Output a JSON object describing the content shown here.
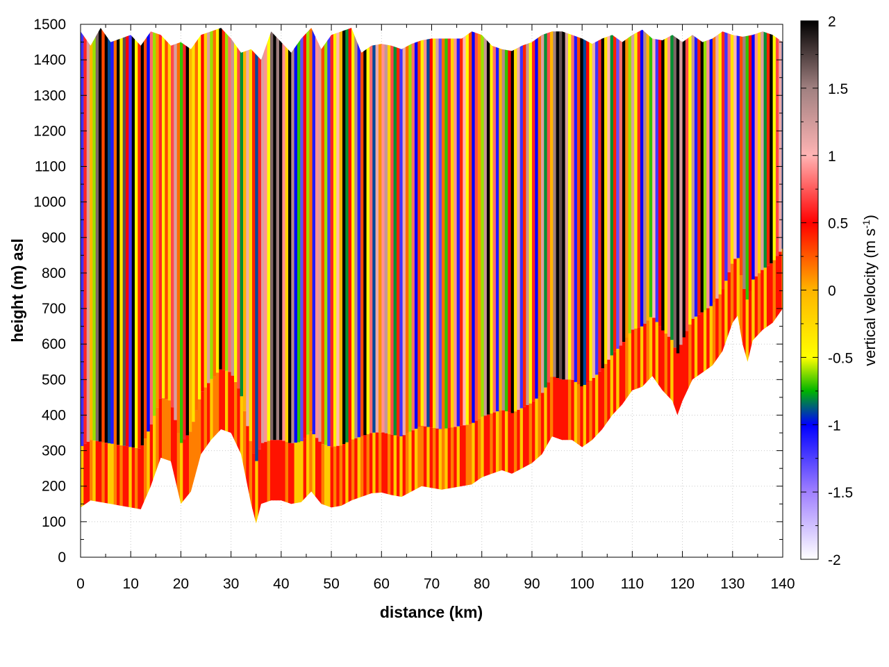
{
  "chart_data": {
    "type": "heatmap",
    "title": "",
    "xlabel": "distance (km)",
    "ylabel": "height (m) asl",
    "xlim": [
      0,
      140
    ],
    "ylim": [
      0,
      1500
    ],
    "x_ticks": [
      "0",
      "10",
      "20",
      "30",
      "40",
      "50",
      "60",
      "70",
      "80",
      "90",
      "100",
      "110",
      "120",
      "130",
      "140"
    ],
    "y_ticks": [
      "0",
      "100",
      "200",
      "300",
      "400",
      "500",
      "600",
      "700",
      "800",
      "900",
      "1000",
      "1100",
      "1200",
      "1300",
      "1400",
      "1500"
    ],
    "grid": true,
    "colorbar": {
      "label_main": "vertical velocity (m s",
      "label_sup": "-1",
      "label_end": ")",
      "range": [
        -2,
        2
      ],
      "ticks": [
        "2",
        "1.5",
        "1",
        "0.5",
        "0",
        "-0.5",
        "-1",
        "-1.5",
        "-2"
      ],
      "colors": [
        "#ffffff",
        "#a080ff",
        "#0000ff",
        "#00b400",
        "#ffff00",
        "#ffb400",
        "#ff0000",
        "#ffb4b4",
        "#a08080",
        "#000000"
      ],
      "color_stops": [
        -2.0,
        -1.5,
        -1.0,
        -0.75,
        -0.5,
        0.0,
        0.5,
        1.0,
        1.5,
        2.0
      ]
    },
    "terrain_height_m": [
      [
        0,
        140
      ],
      [
        2,
        160
      ],
      [
        4,
        155
      ],
      [
        6,
        150
      ],
      [
        8,
        145
      ],
      [
        10,
        140
      ],
      [
        12,
        135
      ],
      [
        14,
        200
      ],
      [
        16,
        280
      ],
      [
        18,
        270
      ],
      [
        20,
        150
      ],
      [
        22,
        185
      ],
      [
        24,
        290
      ],
      [
        26,
        330
      ],
      [
        28,
        360
      ],
      [
        30,
        350
      ],
      [
        32,
        290
      ],
      [
        34,
        150
      ],
      [
        35,
        95
      ],
      [
        36,
        150
      ],
      [
        38,
        160
      ],
      [
        40,
        160
      ],
      [
        42,
        150
      ],
      [
        44,
        155
      ],
      [
        46,
        185
      ],
      [
        48,
        150
      ],
      [
        50,
        140
      ],
      [
        52,
        145
      ],
      [
        54,
        160
      ],
      [
        56,
        170
      ],
      [
        58,
        180
      ],
      [
        60,
        182
      ],
      [
        62,
        175
      ],
      [
        64,
        170
      ],
      [
        66,
        185
      ],
      [
        68,
        200
      ],
      [
        70,
        195
      ],
      [
        72,
        190
      ],
      [
        74,
        195
      ],
      [
        76,
        200
      ],
      [
        78,
        205
      ],
      [
        80,
        225
      ],
      [
        82,
        235
      ],
      [
        84,
        245
      ],
      [
        86,
        235
      ],
      [
        88,
        250
      ],
      [
        90,
        265
      ],
      [
        92,
        290
      ],
      [
        94,
        340
      ],
      [
        96,
        330
      ],
      [
        98,
        330
      ],
      [
        100,
        310
      ],
      [
        102,
        330
      ],
      [
        104,
        360
      ],
      [
        106,
        400
      ],
      [
        108,
        430
      ],
      [
        110,
        470
      ],
      [
        112,
        480
      ],
      [
        114,
        510
      ],
      [
        116,
        470
      ],
      [
        118,
        440
      ],
      [
        119,
        400
      ],
      [
        120,
        440
      ],
      [
        122,
        500
      ],
      [
        124,
        520
      ],
      [
        126,
        540
      ],
      [
        128,
        580
      ],
      [
        130,
        660
      ],
      [
        131,
        680
      ],
      [
        132,
        600
      ],
      [
        133,
        550
      ],
      [
        134,
        610
      ],
      [
        136,
        640
      ],
      [
        138,
        660
      ],
      [
        140,
        700
      ]
    ],
    "top_height_m": [
      [
        0,
        1480
      ],
      [
        2,
        1440
      ],
      [
        4,
        1490
      ],
      [
        6,
        1450
      ],
      [
        8,
        1460
      ],
      [
        10,
        1470
      ],
      [
        12,
        1440
      ],
      [
        14,
        1480
      ],
      [
        16,
        1470
      ],
      [
        18,
        1440
      ],
      [
        20,
        1450
      ],
      [
        22,
        1430
      ],
      [
        24,
        1470
      ],
      [
        26,
        1480
      ],
      [
        28,
        1490
      ],
      [
        30,
        1460
      ],
      [
        32,
        1420
      ],
      [
        34,
        1430
      ],
      [
        36,
        1400
      ],
      [
        38,
        1480
      ],
      [
        40,
        1450
      ],
      [
        42,
        1420
      ],
      [
        44,
        1460
      ],
      [
        46,
        1490
      ],
      [
        48,
        1430
      ],
      [
        50,
        1470
      ],
      [
        52,
        1480
      ],
      [
        54,
        1490
      ],
      [
        56,
        1420
      ],
      [
        58,
        1440
      ],
      [
        60,
        1445
      ],
      [
        62,
        1440
      ],
      [
        64,
        1430
      ],
      [
        66,
        1445
      ],
      [
        68,
        1455
      ],
      [
        70,
        1460
      ],
      [
        72,
        1460
      ],
      [
        74,
        1460
      ],
      [
        76,
        1460
      ],
      [
        78,
        1480
      ],
      [
        80,
        1470
      ],
      [
        82,
        1440
      ],
      [
        84,
        1430
      ],
      [
        86,
        1425
      ],
      [
        88,
        1440
      ],
      [
        90,
        1450
      ],
      [
        92,
        1470
      ],
      [
        94,
        1480
      ],
      [
        96,
        1480
      ],
      [
        98,
        1470
      ],
      [
        100,
        1460
      ],
      [
        102,
        1445
      ],
      [
        104,
        1460
      ],
      [
        106,
        1470
      ],
      [
        108,
        1450
      ],
      [
        110,
        1470
      ],
      [
        112,
        1485
      ],
      [
        114,
        1460
      ],
      [
        116,
        1455
      ],
      [
        118,
        1470
      ],
      [
        120,
        1450
      ],
      [
        122,
        1470
      ],
      [
        124,
        1450
      ],
      [
        126,
        1460
      ],
      [
        128,
        1480
      ],
      [
        130,
        1470
      ],
      [
        132,
        1465
      ],
      [
        134,
        1470
      ],
      [
        136,
        1480
      ],
      [
        138,
        1470
      ],
      [
        140,
        1450
      ]
    ],
    "column_vertical_velocity_ms": [
      [
        0.0,
        -1.2
      ],
      [
        0.6,
        0.6
      ],
      [
        1.2,
        1.2
      ],
      [
        1.8,
        0.0
      ],
      [
        2.4,
        -0.6
      ],
      [
        3.0,
        1.6
      ],
      [
        3.6,
        2.0
      ],
      [
        4.2,
        0.3
      ],
      [
        4.8,
        2.0
      ],
      [
        5.4,
        -0.9
      ],
      [
        6.0,
        -1.1
      ],
      [
        6.6,
        0.2
      ],
      [
        7.2,
        2.0
      ],
      [
        7.8,
        -0.4
      ],
      [
        8.4,
        1.7
      ],
      [
        9.0,
        0.5
      ],
      [
        9.6,
        -1.2
      ],
      [
        10.2,
        2.0
      ],
      [
        10.8,
        -0.5
      ],
      [
        11.4,
        0.4
      ],
      [
        12.0,
        2.0
      ],
      [
        12.6,
        0.3
      ],
      [
        13.2,
        -1.0
      ],
      [
        13.8,
        0.8
      ],
      [
        14.4,
        -0.6
      ],
      [
        15.0,
        0.1
      ],
      [
        15.6,
        0.6
      ],
      [
        16.2,
        -0.4
      ],
      [
        16.8,
        0.3
      ],
      [
        17.4,
        -0.2
      ],
      [
        18.0,
        0.7
      ],
      [
        18.6,
        1.2
      ],
      [
        19.2,
        0.2
      ],
      [
        19.8,
        -0.7
      ],
      [
        20.4,
        0.6
      ],
      [
        21.0,
        2.0
      ],
      [
        21.6,
        0.0
      ],
      [
        22.2,
        -0.3
      ],
      [
        22.8,
        0.2
      ],
      [
        23.4,
        -0.5
      ],
      [
        24.0,
        0.5
      ],
      [
        24.6,
        -0.2
      ],
      [
        25.2,
        1.2
      ],
      [
        25.8,
        -0.6
      ],
      [
        26.4,
        0.2
      ],
      [
        27.0,
        -0.4
      ],
      [
        27.6,
        2.0
      ],
      [
        28.2,
        0.4
      ],
      [
        28.8,
        -0.6
      ],
      [
        29.4,
        0.8
      ],
      [
        30.0,
        1.3
      ],
      [
        30.6,
        -0.5
      ],
      [
        31.2,
        0.7
      ],
      [
        31.8,
        -0.8
      ],
      [
        32.4,
        0.0
      ],
      [
        33.0,
        1.1
      ],
      [
        33.6,
        -0.3
      ],
      [
        34.2,
        0.4
      ],
      [
        34.8,
        -0.9
      ],
      [
        35.4,
        0.6
      ],
      [
        36.0,
        1.2
      ],
      [
        36.6,
        0.9
      ],
      [
        37.2,
        -0.5
      ],
      [
        37.8,
        1.6
      ],
      [
        38.4,
        2.0
      ],
      [
        39.0,
        1.5
      ],
      [
        39.6,
        2.0
      ],
      [
        40.2,
        0.9
      ],
      [
        40.8,
        -0.2
      ],
      [
        41.4,
        2.0
      ],
      [
        42.0,
        1.4
      ],
      [
        42.6,
        -1.0
      ],
      [
        43.2,
        -0.7
      ],
      [
        43.8,
        -1.3
      ],
      [
        44.4,
        0.5
      ],
      [
        45.0,
        -0.6
      ],
      [
        45.6,
        0.2
      ],
      [
        46.2,
        -1.1
      ],
      [
        46.8,
        0.9
      ],
      [
        47.4,
        1.2
      ],
      [
        48.0,
        0.3
      ],
      [
        48.6,
        -0.6
      ],
      [
        49.2,
        -1.2
      ],
      [
        49.8,
        0.6
      ],
      [
        50.4,
        -0.4
      ],
      [
        51.0,
        1.0
      ],
      [
        51.6,
        0.0
      ],
      [
        52.2,
        2.0
      ],
      [
        52.8,
        -0.8
      ],
      [
        53.4,
        0.5
      ],
      [
        54.0,
        -0.4
      ],
      [
        54.6,
        1.4
      ],
      [
        55.2,
        -1.1
      ],
      [
        55.8,
        0.3
      ],
      [
        56.4,
        2.0
      ],
      [
        57.0,
        -0.5
      ],
      [
        57.6,
        0.8
      ],
      [
        58.2,
        -0.9
      ],
      [
        58.8,
        1.1
      ],
      [
        59.4,
        0.1
      ],
      [
        60.0,
        0.9
      ],
      [
        60.6,
        1.3
      ],
      [
        61.2,
        -0.2
      ],
      [
        61.8,
        0.7
      ],
      [
        62.4,
        -0.8
      ],
      [
        63.0,
        0.4
      ],
      [
        63.6,
        -1.2
      ],
      [
        64.2,
        1.1
      ],
      [
        64.8,
        0.2
      ],
      [
        65.4,
        -0.6
      ],
      [
        66.0,
        0.8
      ],
      [
        66.6,
        -1.0
      ],
      [
        67.2,
        0.3
      ],
      [
        67.8,
        -0.4
      ],
      [
        68.4,
        0.9
      ],
      [
        69.0,
        -0.9
      ],
      [
        69.6,
        0.5
      ],
      [
        70.2,
        -0.3
      ],
      [
        70.8,
        1.2
      ],
      [
        71.4,
        -1.3
      ],
      [
        72.0,
        0.2
      ],
      [
        72.6,
        -0.7
      ],
      [
        73.2,
        0.6
      ],
      [
        73.8,
        -0.2
      ],
      [
        74.4,
        0.9
      ],
      [
        75.0,
        -1.1
      ],
      [
        75.6,
        0.4
      ],
      [
        76.2,
        1.0
      ],
      [
        76.8,
        -0.5
      ],
      [
        77.4,
        0.3
      ],
      [
        78.0,
        -1.0
      ],
      [
        78.6,
        0.7
      ],
      [
        79.2,
        0.1
      ],
      [
        79.8,
        -0.6
      ],
      [
        80.4,
        1.3
      ],
      [
        81.0,
        2.0
      ],
      [
        81.6,
        -0.4
      ],
      [
        82.2,
        0.8
      ],
      [
        82.8,
        -1.1
      ],
      [
        83.4,
        0.0
      ],
      [
        84.0,
        1.4
      ],
      [
        84.6,
        -0.7
      ],
      [
        85.2,
        0.5
      ],
      [
        85.8,
        2.0
      ],
      [
        86.4,
        -0.3
      ],
      [
        87.0,
        1.1
      ],
      [
        87.6,
        -1.2
      ],
      [
        88.2,
        0.4
      ],
      [
        88.8,
        1.3
      ],
      [
        89.4,
        -0.5
      ],
      [
        90.0,
        0.6
      ],
      [
        90.6,
        -1.0
      ],
      [
        91.2,
        0.2
      ],
      [
        91.8,
        1.2
      ],
      [
        92.4,
        -0.8
      ],
      [
        93.0,
        0.7
      ],
      [
        93.6,
        0.0
      ],
      [
        94.2,
        1.5
      ],
      [
        94.8,
        2.0
      ],
      [
        95.4,
        1.7
      ],
      [
        96.0,
        2.0
      ],
      [
        96.6,
        1.2
      ],
      [
        97.2,
        -0.5
      ],
      [
        97.8,
        0.8
      ],
      [
        98.4,
        -1.1
      ],
      [
        99.0,
        0.3
      ],
      [
        99.6,
        2.0
      ],
      [
        100.2,
        -0.9
      ],
      [
        100.8,
        0.5
      ],
      [
        101.4,
        -0.4
      ],
      [
        102.0,
        1.1
      ],
      [
        102.6,
        -1.2
      ],
      [
        103.2,
        0.6
      ],
      [
        103.8,
        2.0
      ],
      [
        104.4,
        -0.3
      ],
      [
        105.0,
        1.0
      ],
      [
        105.6,
        -0.8
      ],
      [
        106.2,
        0.4
      ],
      [
        106.8,
        -1.3
      ],
      [
        107.4,
        0.8
      ],
      [
        108.0,
        2.0
      ],
      [
        108.6,
        0.1
      ],
      [
        109.2,
        -0.6
      ],
      [
        109.8,
        1.2
      ],
      [
        110.4,
        -0.4
      ],
      [
        111.0,
        0.6
      ],
      [
        111.6,
        -1.0
      ],
      [
        112.2,
        1.4
      ],
      [
        112.8,
        0.0
      ],
      [
        113.4,
        -0.7
      ],
      [
        114.0,
        1.0
      ],
      [
        114.6,
        -1.2
      ],
      [
        115.2,
        0.5
      ],
      [
        115.8,
        2.0
      ],
      [
        116.4,
        -0.3
      ],
      [
        117.0,
        0.9
      ],
      [
        117.6,
        -0.8
      ],
      [
        118.2,
        1.6
      ],
      [
        118.8,
        2.0
      ],
      [
        119.4,
        1.2
      ],
      [
        120.0,
        2.0
      ],
      [
        120.6,
        0.7
      ],
      [
        121.2,
        -0.5
      ],
      [
        121.8,
        1.3
      ],
      [
        122.4,
        -1.1
      ],
      [
        123.0,
        0.4
      ],
      [
        123.6,
        2.0
      ],
      [
        124.2,
        -0.6
      ],
      [
        124.8,
        0.9
      ],
      [
        125.4,
        -1.0
      ],
      [
        126.0,
        0.2
      ],
      [
        126.6,
        1.1
      ],
      [
        127.2,
        -0.4
      ],
      [
        127.8,
        0.6
      ],
      [
        128.4,
        -1.2
      ],
      [
        129.0,
        0.8
      ],
      [
        129.6,
        -0.3
      ],
      [
        130.2,
        1.0
      ],
      [
        130.8,
        -1.1
      ],
      [
        131.4,
        0.3
      ],
      [
        132.0,
        1.5
      ],
      [
        132.6,
        -0.7
      ],
      [
        133.2,
        0.5
      ],
      [
        133.8,
        -1.0
      ],
      [
        134.4,
        0.9
      ],
      [
        135.0,
        -0.2
      ],
      [
        135.6,
        1.2
      ],
      [
        136.2,
        -0.8
      ],
      [
        136.8,
        0.4
      ],
      [
        137.4,
        2.0
      ],
      [
        138.0,
        -0.5
      ],
      [
        138.6,
        0.7
      ],
      [
        139.2,
        1.1
      ],
      [
        139.8,
        -0.9
      ]
    ]
  }
}
